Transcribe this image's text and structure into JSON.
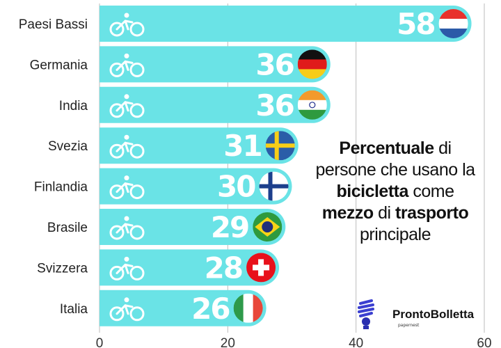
{
  "chart_data": {
    "type": "bar",
    "orientation": "horizontal",
    "categories": [
      "Paesi Bassi",
      "Germania",
      "India",
      "Svezia",
      "Finlandia",
      "Brasile",
      "Svizzera",
      "Italia"
    ],
    "values": [
      58,
      36,
      36,
      31,
      30,
      29,
      28,
      26
    ],
    "flags": [
      "netherlands-flag",
      "germany-flag",
      "india-flag",
      "sweden-flag",
      "finland-flag",
      "brazil-flag",
      "switzerland-flag",
      "italy-flag"
    ],
    "xlim": [
      0,
      60
    ],
    "xticks": [
      "0",
      "20",
      "40",
      "60"
    ],
    "grid": true,
    "bar_color": "#6ae3e6",
    "bar_icon": "bicycle-icon",
    "title_parts": [
      {
        "text": "Percentuale",
        "bold": true
      },
      {
        "text": " di persone che usano la ",
        "bold": false
      },
      {
        "text": "bicicletta",
        "bold": true
      },
      {
        "text": " come ",
        "bold": false
      },
      {
        "text": "mezzo",
        "bold": true
      },
      {
        "text": " di ",
        "bold": false
      },
      {
        "text": "trasporto",
        "bold": true
      },
      {
        "text": " principale",
        "bold": false
      }
    ]
  },
  "logo": {
    "brand": "ProntoBolletta",
    "sub": "papernest"
  }
}
